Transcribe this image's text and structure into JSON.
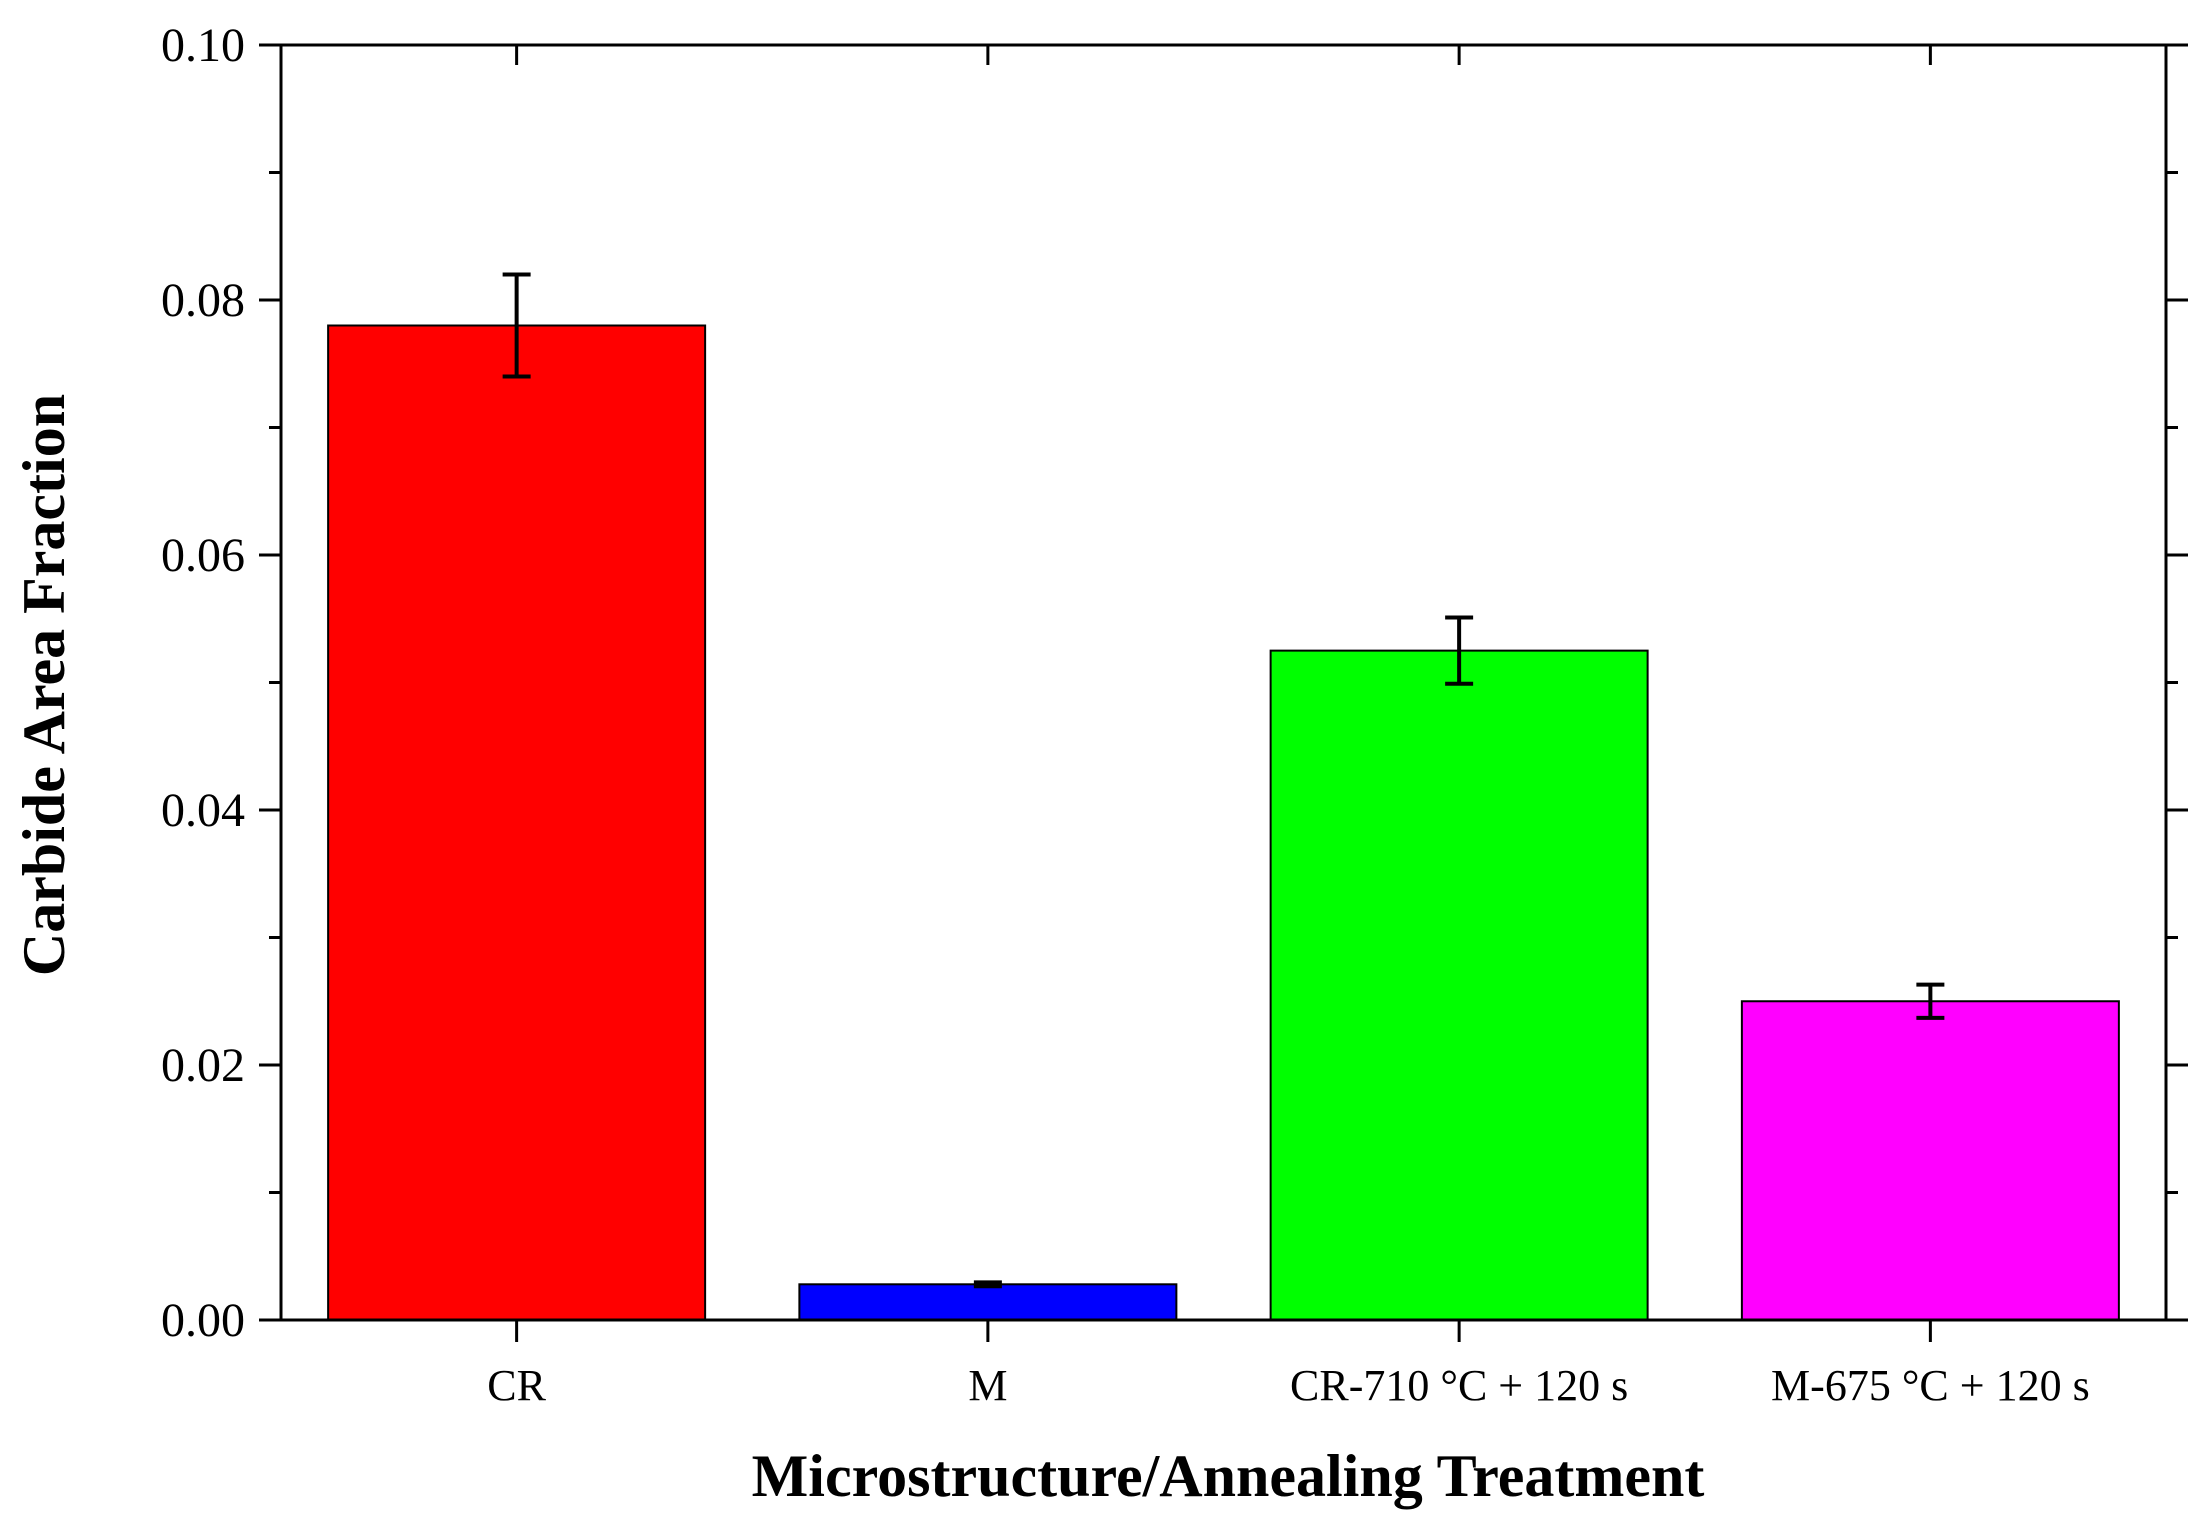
{
  "chart_data": {
    "type": "bar",
    "title": "",
    "xlabel": "Microstructure/Annealing Treatment",
    "ylabel": "Carbide Area Fraction",
    "ylim": [
      0,
      0.1
    ],
    "y_ticks": [
      "0.00",
      "0.02",
      "0.04",
      "0.06",
      "0.08",
      "0.10"
    ],
    "grid": false,
    "categories": [
      "CR",
      "M",
      "CR-710 °C + 120 s",
      "M-675 °C + 120 s"
    ],
    "values": [
      0.078,
      0.0028,
      0.0525,
      0.025
    ],
    "errors": [
      0.004,
      0.00015,
      0.0026,
      0.0013
    ],
    "colors": [
      "#ff0000",
      "#0000ff",
      "#00ff00",
      "#ff00ff"
    ]
  }
}
